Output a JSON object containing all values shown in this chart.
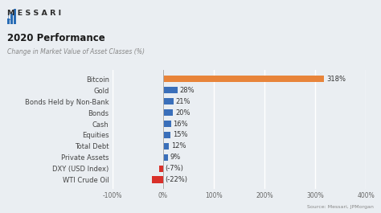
{
  "title": "2020 Performance",
  "subtitle": "Change in Market Value of Asset Classes (%)",
  "source": "Source: Messari, JPMorgan",
  "categories": [
    "WTI Crude Oil",
    "DXY (USD Index)",
    "Private Assets",
    "Total Debt",
    "Equities",
    "Cash",
    "Bonds",
    "Bonds Held by Non-Bank",
    "Gold",
    "Bitcoin"
  ],
  "values": [
    -22,
    -7,
    9,
    12,
    15,
    16,
    20,
    21,
    28,
    318
  ],
  "colors": [
    "#d9302a",
    "#d9302a",
    "#3a6fba",
    "#3a6fba",
    "#3a6fba",
    "#3a6fba",
    "#3a6fba",
    "#3a6fba",
    "#3a6fba",
    "#e8843a"
  ],
  "labels": [
    "(-22%)",
    "(-7%)",
    "9%",
    "12%",
    "15%",
    "16%",
    "20%",
    "21%",
    "28%",
    "318%"
  ],
  "xlim": [
    -100,
    400
  ],
  "xticks": [
    -100,
    0,
    100,
    200,
    300,
    400
  ],
  "xticklabels": [
    "-100%",
    "0%",
    "100%",
    "200%",
    "300%",
    "400%"
  ],
  "background_color": "#eaeef2",
  "plot_bg_color": "#eaeef2",
  "bar_height": 0.6,
  "title_fontsize": 8.5,
  "subtitle_fontsize": 5.5,
  "label_fontsize": 6.0,
  "tick_fontsize": 5.5,
  "source_fontsize": 4.5,
  "logo_fontsize": 8.0,
  "category_fontsize": 6.0
}
